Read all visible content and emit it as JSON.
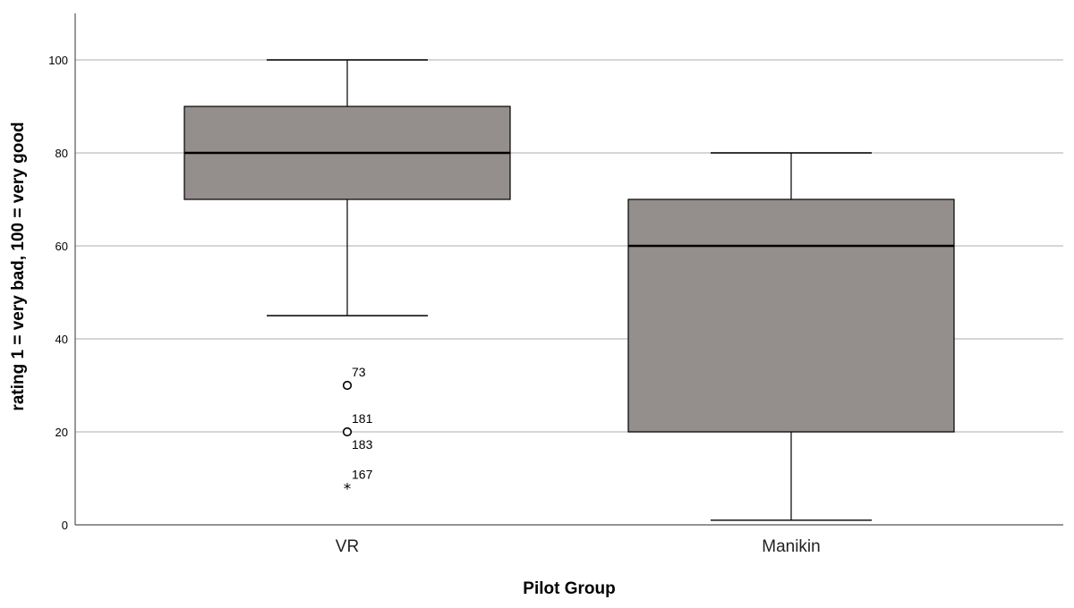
{
  "chart_data": {
    "type": "boxplot",
    "xlabel": "Pilot Group",
    "ylabel": "rating 1 = very bad, 100 = very good",
    "ylim": [
      0,
      110
    ],
    "yticks": [
      0,
      20,
      40,
      60,
      80,
      100
    ],
    "grid": true,
    "box_color": "#948f8d",
    "categories": [
      "VR",
      "Manikin"
    ],
    "boxes": [
      {
        "category": "VR",
        "whisker_low": 45,
        "q1": 70,
        "median": 80,
        "q3": 90,
        "whisker_high": 100,
        "outliers": [
          {
            "value": 30,
            "marker": "circle",
            "label": "73",
            "label_pos": "above"
          },
          {
            "value": 20,
            "marker": "circle",
            "label": "181",
            "label_pos": "above"
          },
          {
            "value": 20,
            "marker": "circle",
            "label": "183",
            "label_pos": "below"
          },
          {
            "value": 8,
            "marker": "star",
            "label": "167",
            "label_pos": "above"
          }
        ]
      },
      {
        "category": "Manikin",
        "whisker_low": 1,
        "q1": 20,
        "median": 60,
        "q3": 70,
        "whisker_high": 80,
        "outliers": []
      }
    ]
  }
}
